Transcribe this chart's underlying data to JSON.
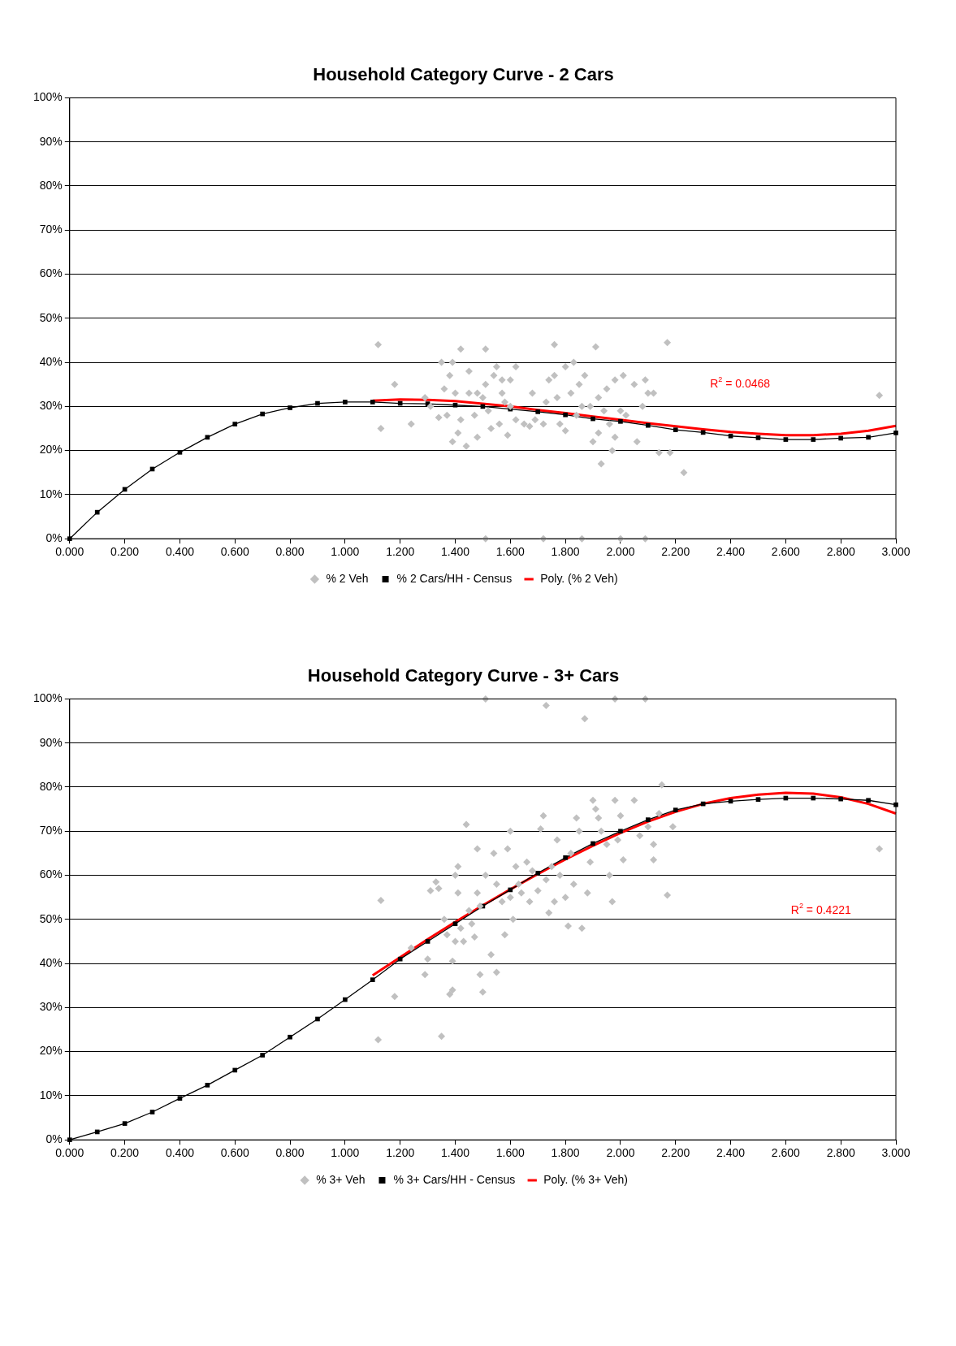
{
  "chart_data": [
    {
      "type": "scatter",
      "title": "Household Category Curve - 2 Cars",
      "legend": "bottom",
      "grid": "y",
      "xlim": [
        0,
        3
      ],
      "xticks": [
        {
          "value": 0,
          "label": "0.000"
        },
        {
          "value": 0.2,
          "label": "0.200"
        },
        {
          "value": 0.4,
          "label": "0.400"
        },
        {
          "value": 0.6,
          "label": "0.600"
        },
        {
          "value": 0.8,
          "label": "0.800"
        },
        {
          "value": 1,
          "label": "1.000"
        },
        {
          "value": 1.2,
          "label": "1.200"
        },
        {
          "value": 1.4,
          "label": "1.400"
        },
        {
          "value": 1.6,
          "label": "1.600"
        },
        {
          "value": 1.8,
          "label": "1.800"
        },
        {
          "value": 2,
          "label": "2.000"
        },
        {
          "value": 2.2,
          "label": "2.200"
        },
        {
          "value": 2.4,
          "label": "2.400"
        },
        {
          "value": 2.6,
          "label": "2.600"
        },
        {
          "value": 2.8,
          "label": "2.800"
        },
        {
          "value": 3,
          "label": "3.000"
        }
      ],
      "ylim": [
        0,
        100
      ],
      "yticks": [
        {
          "value": 0,
          "label": "0%"
        },
        {
          "value": 10,
          "label": "10%"
        },
        {
          "value": 20,
          "label": "20%"
        },
        {
          "value": 30,
          "label": "30%"
        },
        {
          "value": 40,
          "label": "40%"
        },
        {
          "value": 50,
          "label": "50%"
        },
        {
          "value": 60,
          "label": "60%"
        },
        {
          "value": 70,
          "label": "70%"
        },
        {
          "value": 80,
          "label": "80%"
        },
        {
          "value": 90,
          "label": "90%"
        },
        {
          "value": 100,
          "label": "100%"
        }
      ],
      "annotations": [
        "R$^{2}$ = 0.0468"
      ],
      "series": [
        {
          "name": "% 2 Veh",
          "type": "scatter",
          "marker": "diamond",
          "color": "#c0c0c0",
          "x": [
            1.12,
            1.13,
            1.18,
            1.24,
            1.29,
            1.31,
            1.34,
            1.35,
            1.36,
            1.37,
            1.38,
            1.39,
            1.39,
            1.4,
            1.41,
            1.42,
            1.42,
            1.44,
            1.45,
            1.45,
            1.47,
            1.48,
            1.48,
            1.5,
            1.51,
            1.51,
            1.52,
            1.53,
            1.54,
            1.55,
            1.56,
            1.57,
            1.57,
            1.58,
            1.59,
            1.6,
            1.6,
            1.62,
            1.62,
            1.65,
            1.67,
            1.68,
            1.69,
            1.72,
            1.73,
            1.74,
            1.76,
            1.76,
            1.77,
            1.78,
            1.8,
            1.8,
            1.82,
            1.83,
            1.84,
            1.85,
            1.86,
            1.87,
            1.89,
            1.9,
            1.91,
            1.92,
            1.92,
            1.93,
            1.94,
            1.95,
            1.96,
            1.97,
            1.98,
            1.98,
            2,
            2.01,
            2.02,
            2.05,
            2.06,
            2.08,
            2.09,
            2.1,
            2.12,
            2.14,
            2.17,
            2.18,
            2.23,
            2.94,
            1.51,
            1.72,
            1.86,
            2,
            2.09
          ],
          "values": [
            44,
            25,
            35,
            26,
            32,
            30,
            27.5,
            40,
            34,
            28,
            37,
            40,
            22,
            33,
            24,
            27,
            43,
            21,
            38,
            33,
            28,
            33,
            23,
            32,
            43,
            35,
            29,
            25,
            37,
            39,
            26,
            33,
            36,
            31,
            23.5,
            30,
            36,
            39,
            27,
            26,
            25.5,
            33,
            27,
            26,
            31,
            36,
            37,
            44,
            32,
            26,
            39,
            24.5,
            33,
            40,
            28,
            35,
            30,
            37,
            30,
            22,
            43.5,
            32,
            24,
            17,
            29,
            34,
            26,
            20,
            36,
            23,
            29,
            37,
            28,
            35,
            22,
            30,
            36,
            33,
            33,
            19.5,
            44.5,
            19.5,
            15,
            32.5,
            0,
            0,
            0,
            0,
            0
          ]
        },
        {
          "name": "% 2 Cars/HH - Census",
          "type": "line",
          "marker": "square",
          "color": "#000000",
          "x": [
            0,
            0.1,
            0.2,
            0.3,
            0.4,
            0.5,
            0.6,
            0.7,
            0.8,
            0.9,
            1,
            1.1,
            1.2,
            1.3,
            1.4,
            1.5,
            1.6,
            1.7,
            1.8,
            1.9,
            2,
            2.1,
            2.2,
            2.3,
            2.4,
            2.5,
            2.6,
            2.7,
            2.8,
            2.9,
            3
          ],
          "values": [
            0,
            6,
            11.2,
            15.8,
            19.6,
            23,
            26,
            28.3,
            29.7,
            30.7,
            31,
            31,
            30.7,
            30.6,
            30.3,
            30,
            29.4,
            28.8,
            28.1,
            27.2,
            26.6,
            25.7,
            24.7,
            24.1,
            23.3,
            22.9,
            22.5,
            22.5,
            22.8,
            23,
            24
          ]
        },
        {
          "name": "Poly. (% 2 Veh)",
          "type": "line",
          "marker": "none",
          "color": "#ff0000",
          "x": [
            1.1,
            1.2,
            1.3,
            1.4,
            1.5,
            1.6,
            1.7,
            1.8,
            1.9,
            2,
            2.1,
            2.2,
            2.3,
            2.4,
            2.5,
            2.6,
            2.7,
            2.8,
            2.9,
            3
          ],
          "values": [
            31.3,
            31.6,
            31.5,
            31.2,
            30.6,
            30,
            29.2,
            28.5,
            27.7,
            27,
            26.2,
            25.5,
            24.8,
            24.2,
            23.8,
            23.5,
            23.5,
            23.8,
            24.5,
            25.6
          ]
        }
      ]
    },
    {
      "type": "scatter",
      "title": "Household Category Curve - 3+ Cars",
      "legend": "bottom",
      "grid": "y",
      "xlim": [
        0,
        3
      ],
      "xticks": [
        {
          "value": 0,
          "label": "0.000"
        },
        {
          "value": 0.2,
          "label": "0.200"
        },
        {
          "value": 0.4,
          "label": "0.400"
        },
        {
          "value": 0.6,
          "label": "0.600"
        },
        {
          "value": 0.8,
          "label": "0.800"
        },
        {
          "value": 1,
          "label": "1.000"
        },
        {
          "value": 1.2,
          "label": "1.200"
        },
        {
          "value": 1.4,
          "label": "1.400"
        },
        {
          "value": 1.6,
          "label": "1.600"
        },
        {
          "value": 1.8,
          "label": "1.800"
        },
        {
          "value": 2,
          "label": "2.000"
        },
        {
          "value": 2.2,
          "label": "2.200"
        },
        {
          "value": 2.4,
          "label": "2.400"
        },
        {
          "value": 2.6,
          "label": "2.600"
        },
        {
          "value": 2.8,
          "label": "2.800"
        },
        {
          "value": 3,
          "label": "3.000"
        }
      ],
      "ylim": [
        0,
        100
      ],
      "yticks": [
        {
          "value": 0,
          "label": "0%"
        },
        {
          "value": 10,
          "label": "10%"
        },
        {
          "value": 20,
          "label": "20%"
        },
        {
          "value": 30,
          "label": "30%"
        },
        {
          "value": 40,
          "label": "40%"
        },
        {
          "value": 50,
          "label": "50%"
        },
        {
          "value": 60,
          "label": "60%"
        },
        {
          "value": 70,
          "label": "70%"
        },
        {
          "value": 80,
          "label": "80%"
        },
        {
          "value": 90,
          "label": "90%"
        },
        {
          "value": 100,
          "label": "100%"
        }
      ],
      "annotations": [
        "R$^{2}$ = 0.4221"
      ],
      "series": [
        {
          "name": "% 3+ Veh",
          "type": "scatter",
          "marker": "diamond",
          "color": "#c0c0c0",
          "x": [
            1.12,
            1.13,
            1.18,
            1.24,
            1.29,
            1.3,
            1.31,
            1.33,
            1.34,
            1.35,
            1.36,
            1.37,
            1.38,
            1.39,
            1.39,
            1.4,
            1.4,
            1.41,
            1.41,
            1.42,
            1.43,
            1.44,
            1.45,
            1.46,
            1.47,
            1.48,
            1.48,
            1.49,
            1.49,
            1.5,
            1.51,
            1.51,
            1.53,
            1.54,
            1.55,
            1.55,
            1.57,
            1.58,
            1.59,
            1.6,
            1.6,
            1.61,
            1.62,
            1.63,
            1.64,
            1.66,
            1.67,
            1.68,
            1.7,
            1.71,
            1.72,
            1.73,
            1.73,
            1.74,
            1.75,
            1.76,
            1.77,
            1.78,
            1.8,
            1.81,
            1.82,
            1.83,
            1.84,
            1.85,
            1.86,
            1.87,
            1.88,
            1.89,
            1.9,
            1.91,
            1.92,
            1.93,
            1.95,
            1.96,
            1.97,
            1.98,
            1.98,
            1.99,
            2,
            2.01,
            2.05,
            2.07,
            2.09,
            2.1,
            2.12,
            2.12,
            2.14,
            2.15,
            2.17,
            2.19,
            2.94
          ],
          "values": [
            22.7,
            54.3,
            32.5,
            43.5,
            37.5,
            41,
            56.5,
            58.5,
            57,
            23.5,
            50,
            46.5,
            33,
            40.5,
            34,
            45,
            60,
            56,
            62,
            48,
            45,
            71.5,
            52,
            49,
            46,
            66,
            56,
            53,
            37.5,
            33.5,
            100,
            60,
            42,
            65,
            38,
            58,
            54,
            46.5,
            66,
            70,
            55,
            50,
            62,
            58,
            56,
            63,
            54,
            61,
            56.5,
            70.5,
            73.5,
            98.5,
            59,
            51.5,
            62,
            54,
            68,
            60,
            55,
            48.5,
            65,
            58,
            73,
            70,
            48,
            95.5,
            56,
            63,
            77,
            75,
            73,
            70,
            67,
            60,
            54,
            100,
            77,
            68,
            73.5,
            63.5,
            77,
            69,
            100,
            71,
            67,
            63.5,
            74,
            80.5,
            55.5,
            71,
            66
          ]
        },
        {
          "name": "% 3+ Cars/HH - Census",
          "type": "line",
          "marker": "square",
          "color": "#000000",
          "x": [
            0,
            0.1,
            0.2,
            0.3,
            0.4,
            0.5,
            0.6,
            0.7,
            0.8,
            0.9,
            1,
            1.1,
            1.2,
            1.3,
            1.4,
            1.5,
            1.6,
            1.7,
            1.8,
            1.9,
            2,
            2.1,
            2.2,
            2.3,
            2.4,
            2.5,
            2.6,
            2.7,
            2.8,
            2.9,
            3
          ],
          "values": [
            0,
            1.8,
            3.7,
            6.3,
            9.4,
            12.4,
            15.8,
            19.2,
            23.3,
            27.4,
            31.8,
            36.3,
            41,
            45,
            49,
            53,
            56.7,
            60.5,
            64,
            67.2,
            70,
            72.6,
            74.8,
            76.2,
            76.8,
            77.2,
            77.5,
            77.5,
            77.3,
            77,
            76
          ]
        },
        {
          "name": "Poly. (% 3+ Veh)",
          "type": "line",
          "marker": "none",
          "color": "#ff0000",
          "x": [
            1.1,
            1.2,
            1.3,
            1.4,
            1.5,
            1.6,
            1.7,
            1.8,
            1.9,
            2,
            2.1,
            2.2,
            2.3,
            2.4,
            2.5,
            2.6,
            2.7,
            2.8,
            2.9,
            3
          ],
          "values": [
            37.3,
            41.4,
            45.5,
            49.4,
            53.2,
            56.8,
            60.3,
            63.6,
            66.7,
            69.6,
            72.2,
            74.4,
            76.2,
            77.5,
            78.3,
            78.7,
            78.5,
            77.7,
            76.2,
            74
          ]
        }
      ]
    }
  ]
}
